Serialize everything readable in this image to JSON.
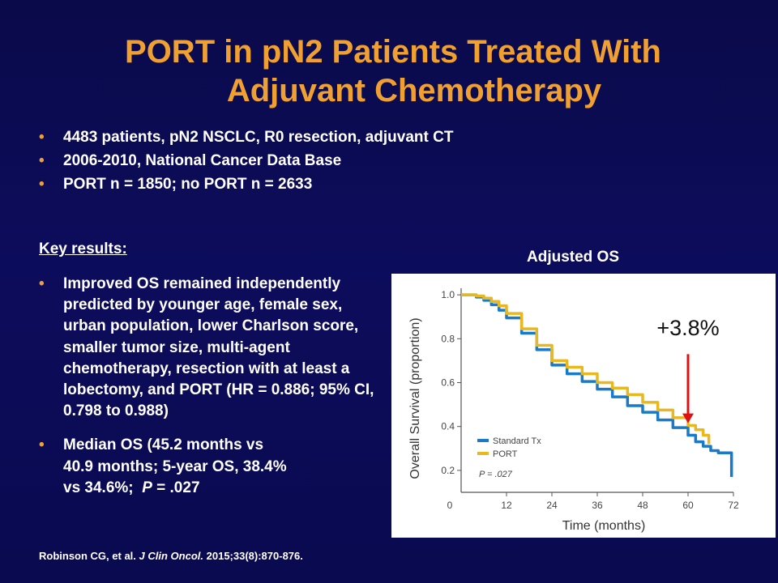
{
  "slide": {
    "title_line1": "PORT in pN2 Patients Treated With",
    "title_line2": "Adjuvant Chemotherapy",
    "top_bullets": [
      "4483 patients, pN2 NSCLC, R0 resection, adjuvant CT",
      "2006-2010, National Cancer Data Base",
      "PORT n = 1850; no PORT n = 2633"
    ],
    "key_results_heading": "Key results:",
    "result_bullet_1": "Improved OS remained independently predicted by younger age, female sex, urban population, lower Charlson score, smaller tumor size, multi-agent chemotherapy, resection with at least a lobectomy, and PORT (HR = 0.886; 95% CI, 0.798 to 0.988)",
    "result_bullet_2": {
      "line1": "Median OS (45.2 months vs",
      "line2": "40.9 months; 5-year OS, 38.4%",
      "line3_prefix": "vs 34.6%;",
      "p_symbol": "P",
      "line3_suffix": "= .027"
    },
    "citation": {
      "authors": "Robinson CG, et al.",
      "journal": "J Clin Oncol.",
      "ref": "2015;33(8):870-876."
    },
    "bullet_glyph": "•",
    "accent_color": "#f0a030"
  },
  "chart_data": {
    "type": "line",
    "heading": "Adjusted OS",
    "xlabel": "Time (months)",
    "ylabel": "Overall Survival (proportion)",
    "xlim": [
      0,
      72
    ],
    "ylim": [
      0.2,
      1.0
    ],
    "x_ticks": [
      "0",
      "12",
      "24",
      "36",
      "48",
      "60",
      "72"
    ],
    "y_ticks": [
      "0.2",
      "0.4",
      "0.6",
      "0.8",
      "1.0"
    ],
    "series": [
      {
        "name": "Standard Tx",
        "color": "#1a7ac8",
        "x": [
          0,
          4,
          6,
          8,
          10,
          12,
          16,
          20,
          24,
          28,
          32,
          36,
          40,
          44,
          48,
          52,
          56,
          60,
          62,
          64,
          66,
          68,
          70,
          71.5,
          71.5
        ],
        "y": [
          1.0,
          0.99,
          0.975,
          0.955,
          0.93,
          0.895,
          0.825,
          0.75,
          0.68,
          0.64,
          0.605,
          0.57,
          0.535,
          0.495,
          0.465,
          0.43,
          0.395,
          0.36,
          0.33,
          0.31,
          0.29,
          0.28,
          0.28,
          0.28,
          0.17
        ]
      },
      {
        "name": "PORT",
        "color": "#e8b820",
        "x": [
          0,
          4,
          6,
          8,
          10,
          12,
          16,
          20,
          24,
          28,
          32,
          36,
          40,
          44,
          48,
          52,
          56,
          60,
          62,
          64,
          65.5
        ],
        "y": [
          1.0,
          0.995,
          0.985,
          0.97,
          0.95,
          0.915,
          0.845,
          0.77,
          0.7,
          0.67,
          0.64,
          0.6,
          0.575,
          0.545,
          0.51,
          0.475,
          0.44,
          0.405,
          0.385,
          0.36,
          0.32
        ]
      }
    ],
    "legend_position": "bottom-left",
    "annotation_p": "P = .027",
    "callout": {
      "label": "+3.8%",
      "x": 60,
      "arrow_color": "#e01010",
      "arrow_from": 0.7,
      "arrow_to": 0.415
    },
    "grid": false
  }
}
